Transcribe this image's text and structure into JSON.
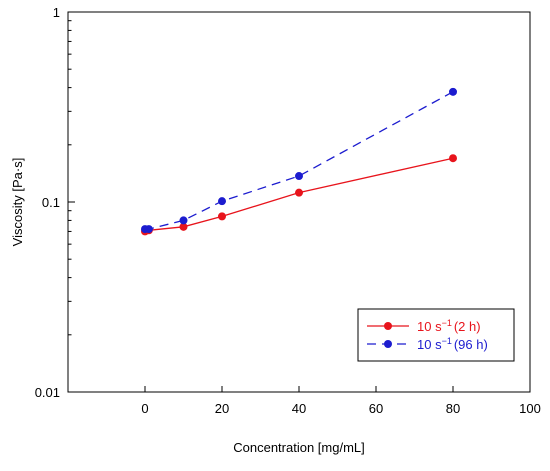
{
  "chart_data": {
    "type": "line",
    "title": "",
    "xlabel": "Concentration [mg/mL]",
    "ylabel": "Viscosity [Pa·s]",
    "xlim": [
      -20,
      100
    ],
    "ylim": [
      0.01,
      1
    ],
    "y_scale": "log",
    "x_ticks": [
      0,
      20,
      40,
      60,
      80,
      100
    ],
    "x_tick_labels": [
      "0",
      "20",
      "40",
      "60",
      "80",
      "100"
    ],
    "y_ticks": [
      0.01,
      0.1,
      1
    ],
    "y_tick_labels": [
      "0.01",
      "0.1",
      "1"
    ],
    "grid": false,
    "legend_position": "bottom-right",
    "series": [
      {
        "name": "10 s⁻¹ (2 h)",
        "name_parts": {
          "base": "10 s",
          "superscript": "−1",
          "suffix": "(2 h)"
        },
        "color": "#e8141c",
        "line_style": "solid",
        "marker": "circle",
        "x": [
          0,
          1,
          10,
          20,
          40,
          80
        ],
        "y": [
          0.07,
          0.071,
          0.074,
          0.084,
          0.112,
          0.17
        ]
      },
      {
        "name": "10 s⁻¹ (96 h)",
        "name_parts": {
          "base": "10 s",
          "superscript": "−1",
          "suffix": "(96 h)"
        },
        "color": "#1c1ccf",
        "line_style": "dashed",
        "marker": "circle",
        "x": [
          0,
          1,
          10,
          20,
          40,
          80
        ],
        "y": [
          0.072,
          0.072,
          0.08,
          0.101,
          0.137,
          0.38
        ]
      }
    ]
  }
}
